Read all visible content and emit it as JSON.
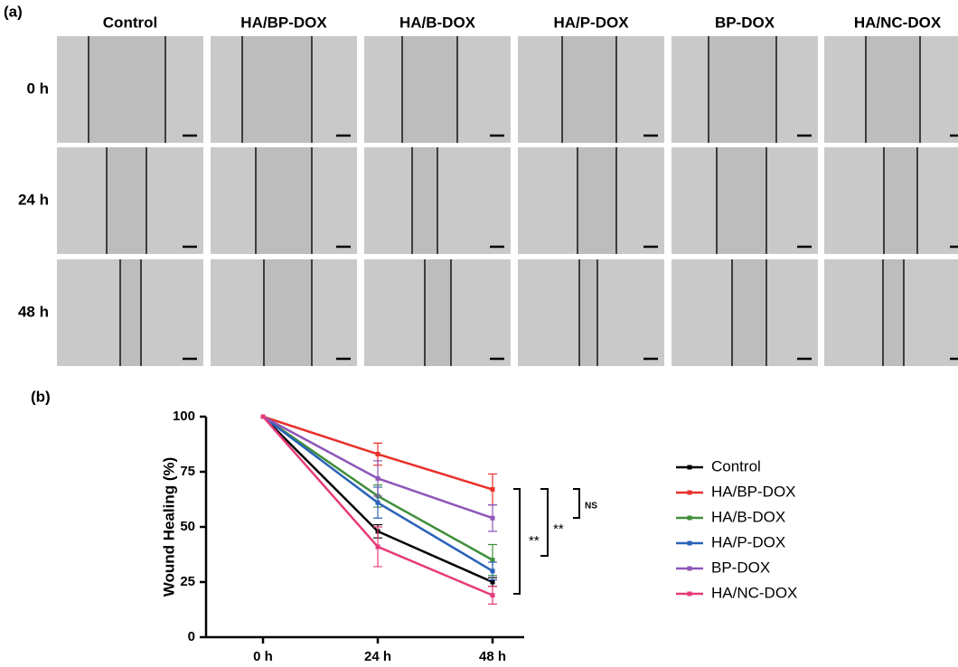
{
  "figure": {
    "panel_a_label": "(a)",
    "panel_b_label": "(b)",
    "columns": [
      "Control",
      "HA/BP-DOX",
      "HA/B-DOX",
      "HA/P-DOX",
      "BP-DOX",
      "HA/NC-DOX"
    ],
    "rows": [
      "0 h",
      "24 h",
      "48 h"
    ]
  },
  "chart_data": {
    "type": "line",
    "y_label": "Wound Healing (%)",
    "categories": [
      "0 h",
      "24 h",
      "48 h"
    ],
    "series": [
      {
        "name": "Control",
        "color": "#000000",
        "values": [
          100,
          48,
          25
        ],
        "errors": [
          null,
          3,
          2
        ]
      },
      {
        "name": "HA/BP-DOX",
        "color": "#e8302a",
        "values": [
          100,
          83,
          67
        ],
        "errors": [
          null,
          5,
          7
        ]
      },
      {
        "name": "HA/B-DOX",
        "color": "#3e8e3a",
        "values": [
          100,
          64,
          35
        ],
        "errors": [
          null,
          5,
          7
        ]
      },
      {
        "name": "HA/P-DOX",
        "color": "#2a63b8",
        "values": [
          100,
          61,
          30
        ],
        "errors": [
          null,
          7,
          4
        ]
      },
      {
        "name": "BP-DOX",
        "color": "#8e56b8",
        "values": [
          100,
          72,
          54
        ],
        "errors": [
          null,
          8,
          6
        ]
      },
      {
        "name": "HA/NC-DOX",
        "color": "#e63b7a",
        "values": [
          100,
          41,
          19
        ],
        "errors": [
          null,
          9,
          4
        ]
      }
    ],
    "ylim": [
      0,
      100
    ],
    "yticks": [
      0,
      25,
      50,
      75,
      100
    ],
    "annotations": [
      "**",
      "**",
      "NS"
    ]
  }
}
